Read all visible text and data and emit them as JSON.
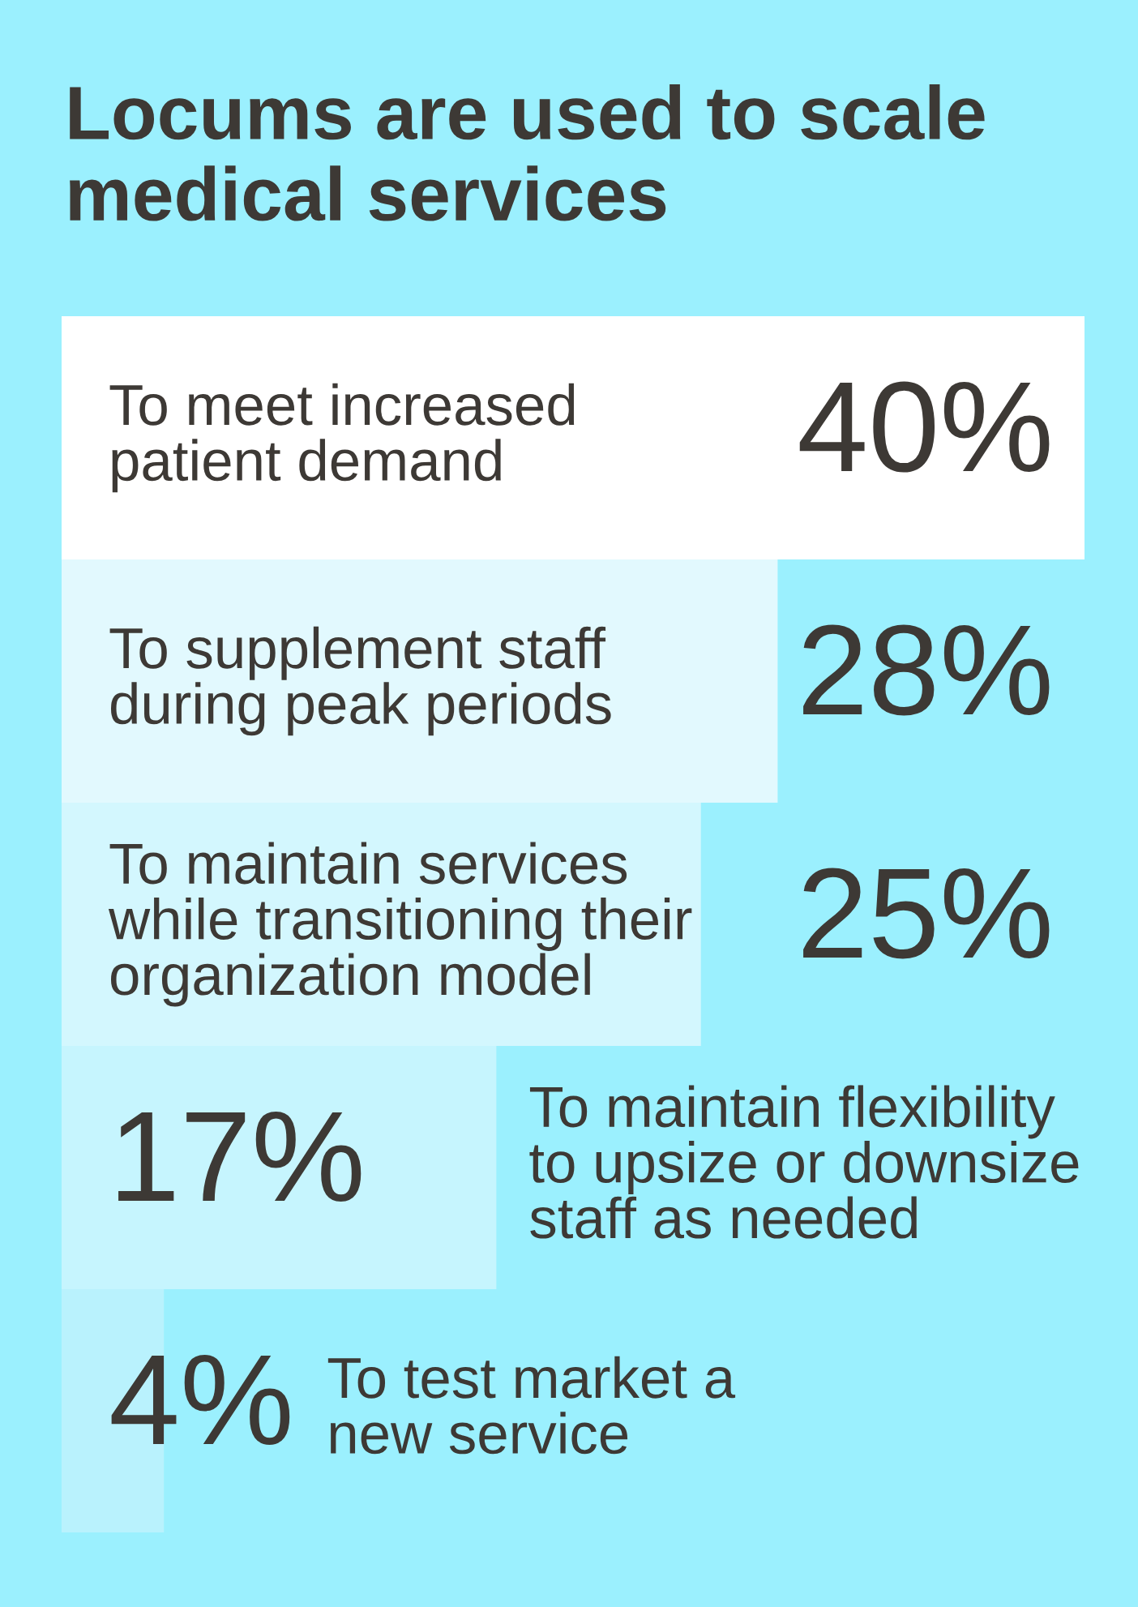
{
  "chart_data": {
    "type": "bar",
    "orientation": "horizontal",
    "title": "Locums are used to scale\nmedical services",
    "categories": [
      "To meet increased\npatient demand",
      "To supplement staff\nduring peak periods",
      "To maintain services\nwhile transitioning their\norganization model",
      "To maintain flexibility\nto upsize or downsize\nstaff as needed",
      "To test market a\nnew service"
    ],
    "values": [
      40,
      28,
      25,
      17,
      4
    ],
    "value_labels": [
      "40%",
      "28%",
      "25%",
      "17%",
      "4%"
    ],
    "colors": [
      "#ffffff",
      "#e2f9fe",
      "#d3f7fe",
      "#c6f5fe",
      "#b9f2fd"
    ]
  }
}
